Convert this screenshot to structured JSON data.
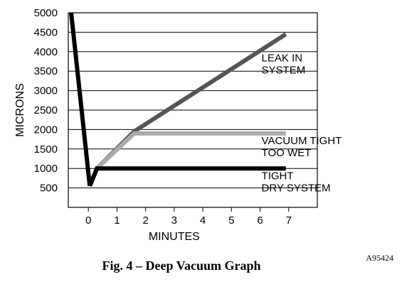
{
  "chart_data": {
    "type": "line",
    "title": "",
    "xlabel": "MINUTES",
    "ylabel": "MICRONS",
    "xlim": [
      -0.7,
      8
    ],
    "ylim": [
      0,
      5000
    ],
    "xticks": [
      0,
      1,
      2,
      3,
      4,
      5,
      6,
      7
    ],
    "yticks": [
      500,
      1000,
      1500,
      2000,
      2500,
      3000,
      3500,
      4000,
      4500,
      5000
    ],
    "grid": "horizontal",
    "pumpdown": {
      "x": [
        -0.6,
        0.05
      ],
      "y": [
        5000,
        550
      ],
      "color": "#000000"
    },
    "series": [
      {
        "name": "LEAK IN SYSTEM",
        "x": [
          0.05,
          0.3,
          1.6,
          6.9
        ],
        "y": [
          550,
          1000,
          1950,
          4450
        ],
        "color": "#555555"
      },
      {
        "name": "VACUUM TIGHT TOO WET",
        "x": [
          0.05,
          0.3,
          1.6,
          6.9
        ],
        "y": [
          550,
          1000,
          1900,
          1900
        ],
        "color": "#aaaaaa"
      },
      {
        "name": "TIGHT DRY SYSTEM",
        "x": [
          0.05,
          0.3,
          6.9
        ],
        "y": [
          550,
          1000,
          1000
        ],
        "color": "#000000"
      }
    ],
    "annotations": [
      {
        "lines": [
          "LEAK IN",
          "SYSTEM"
        ],
        "anchor": [
          6.05,
          3750
        ]
      },
      {
        "lines": [
          "VACUUM TIGHT",
          "TOO WET"
        ],
        "anchor": [
          6.05,
          1620
        ]
      },
      {
        "lines": [
          "TIGHT",
          "DRY SYSTEM"
        ],
        "anchor": [
          6.05,
          720
        ]
      }
    ]
  },
  "caption": "Fig. 4 – Deep Vacuum Graph",
  "figure_code": "A95424"
}
